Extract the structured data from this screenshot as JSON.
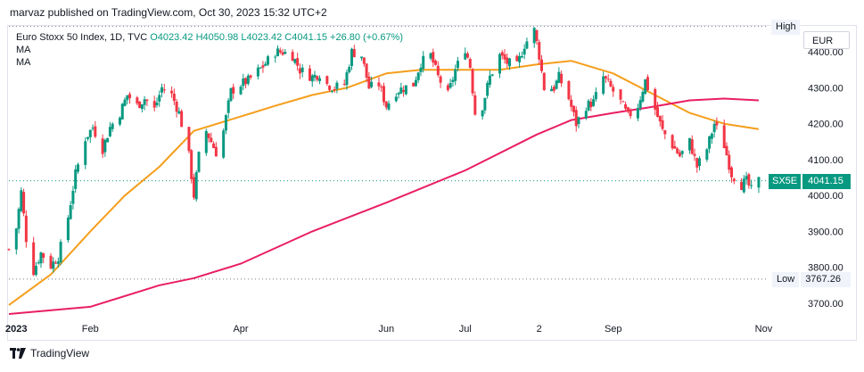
{
  "attribution": "marvaz published on TradingView.com, Oct 30, 2023 15:32 UTC+2",
  "legend": {
    "symbol": "Euro Stoxx 50 Index, 1D, TVC",
    "ohlc": "O4023.42 H4050.98 L4023.42 C4041.15 +26.80 (+0.67%)",
    "ma1": "MA",
    "ma2": "MA"
  },
  "currency": "EUR",
  "tags": {
    "high_label": "High",
    "low_label": "Low",
    "low_value": "3767.26",
    "symbol_code": "SX5E",
    "last_value": "4041.15"
  },
  "footer": "TradingView",
  "colors": {
    "up": "#089981",
    "down": "#f23645",
    "ma_short": "#f59e1b",
    "ma_long": "#e91e63",
    "last_tag": "#089981"
  },
  "chart_data": {
    "type": "candlestick",
    "y_ticks": [
      3700,
      3800,
      3900,
      4000,
      4100,
      4200,
      4300,
      4400
    ],
    "y_tick_labels": [
      "3700.00",
      "3800.00",
      "3900.00",
      "4000.00",
      "4100.00",
      "4200.00",
      "4300.00",
      "4400.00"
    ],
    "ylim": [
      3670,
      4470
    ],
    "x_labels": [
      {
        "label": "2023",
        "x": "2023-01-02"
      },
      {
        "label": "Feb",
        "x": "2023-02-01"
      },
      {
        "label": "Apr",
        "x": "2023-04-03"
      },
      {
        "label": "Jun",
        "x": "2023-06-01"
      },
      {
        "label": "Jul",
        "x": "2023-07-03"
      },
      {
        "label": "2",
        "x": "2023-08-02"
      },
      {
        "label": "Sep",
        "x": "2023-09-01"
      },
      {
        "label": "Nov",
        "x": "2023-11-01"
      }
    ],
    "xlim": [
      "2022-12-30",
      "2023-11-03"
    ],
    "high_value": 4471,
    "low_value": 3767.26,
    "last_value": 4041.15,
    "close_anchors": [
      [
        "2022-12-30",
        3850
      ],
      [
        "2023-01-02",
        3910
      ],
      [
        "2023-01-04",
        4010
      ],
      [
        "2023-01-06",
        3880
      ],
      [
        "2023-01-09",
        3790
      ],
      [
        "2023-01-12",
        3840
      ],
      [
        "2023-01-16",
        3805
      ],
      [
        "2023-01-19",
        3830
      ],
      [
        "2023-01-23",
        3940
      ],
      [
        "2023-01-26",
        4060
      ],
      [
        "2023-01-30",
        4160
      ],
      [
        "2023-02-02",
        4190
      ],
      [
        "2023-02-06",
        4130
      ],
      [
        "2023-02-09",
        4190
      ],
      [
        "2023-02-13",
        4230
      ],
      [
        "2023-02-16",
        4280
      ],
      [
        "2023-02-20",
        4250
      ],
      [
        "2023-02-23",
        4270
      ],
      [
        "2023-02-27",
        4240
      ],
      [
        "2023-03-02",
        4300
      ],
      [
        "2023-03-06",
        4280
      ],
      [
        "2023-03-09",
        4230
      ],
      [
        "2023-03-13",
        4110
      ],
      [
        "2023-03-15",
        4000
      ],
      [
        "2023-03-17",
        4110
      ],
      [
        "2023-03-20",
        4180
      ],
      [
        "2023-03-22",
        4150
      ],
      [
        "2023-03-24",
        4120
      ],
      [
        "2023-03-27",
        4180
      ],
      [
        "2023-03-30",
        4290
      ],
      [
        "2023-04-03",
        4310
      ],
      [
        "2023-04-06",
        4320
      ],
      [
        "2023-04-12",
        4360
      ],
      [
        "2023-04-17",
        4400
      ],
      [
        "2023-04-20",
        4400
      ],
      [
        "2023-04-24",
        4390
      ],
      [
        "2023-04-27",
        4350
      ],
      [
        "2023-05-02",
        4330
      ],
      [
        "2023-05-05",
        4340
      ],
      [
        "2023-05-08",
        4310
      ],
      [
        "2023-05-11",
        4300
      ],
      [
        "2023-05-15",
        4310
      ],
      [
        "2023-05-18",
        4400
      ],
      [
        "2023-05-22",
        4390
      ],
      [
        "2023-05-25",
        4300
      ],
      [
        "2023-05-29",
        4310
      ],
      [
        "2023-06-01",
        4250
      ],
      [
        "2023-06-05",
        4290
      ],
      [
        "2023-06-08",
        4300
      ],
      [
        "2023-06-12",
        4310
      ],
      [
        "2023-06-15",
        4370
      ],
      [
        "2023-06-19",
        4390
      ],
      [
        "2023-06-22",
        4330
      ],
      [
        "2023-06-26",
        4280
      ],
      [
        "2023-06-29",
        4350
      ],
      [
        "2023-07-03",
        4410
      ],
      [
        "2023-07-05",
        4360
      ],
      [
        "2023-07-07",
        4230
      ],
      [
        "2023-07-10",
        4250
      ],
      [
        "2023-07-13",
        4330
      ],
      [
        "2023-07-17",
        4390
      ],
      [
        "2023-07-20",
        4370
      ],
      [
        "2023-07-24",
        4360
      ],
      [
        "2023-07-27",
        4420
      ],
      [
        "2023-07-31",
        4460
      ],
      [
        "2023-08-02",
        4390
      ],
      [
        "2023-08-04",
        4300
      ],
      [
        "2023-08-08",
        4300
      ],
      [
        "2023-08-10",
        4330
      ],
      [
        "2023-08-14",
        4270
      ],
      [
        "2023-08-17",
        4200
      ],
      [
        "2023-08-21",
        4250
      ],
      [
        "2023-08-24",
        4260
      ],
      [
        "2023-08-28",
        4330
      ],
      [
        "2023-08-31",
        4300
      ],
      [
        "2023-09-04",
        4260
      ],
      [
        "2023-09-07",
        4220
      ],
      [
        "2023-09-11",
        4250
      ],
      [
        "2023-09-14",
        4320
      ],
      [
        "2023-09-18",
        4240
      ],
      [
        "2023-09-21",
        4180
      ],
      [
        "2023-09-25",
        4140
      ],
      [
        "2023-09-28",
        4110
      ],
      [
        "2023-10-02",
        4150
      ],
      [
        "2023-10-05",
        4080
      ],
      [
        "2023-10-09",
        4130
      ],
      [
        "2023-10-12",
        4200
      ],
      [
        "2023-10-16",
        4140
      ],
      [
        "2023-10-19",
        4060
      ],
      [
        "2023-10-23",
        4030
      ],
      [
        "2023-10-25",
        4040
      ],
      [
        "2023-10-27",
        4014
      ],
      [
        "2023-10-30",
        4041.15
      ]
    ],
    "series": [
      {
        "name": "MA",
        "values": [
          [
            "2022-12-30",
            3695
          ],
          [
            "2023-01-16",
            3780
          ],
          [
            "2023-02-01",
            3900
          ],
          [
            "2023-02-15",
            4000
          ],
          [
            "2023-03-01",
            4080
          ],
          [
            "2023-03-15",
            4180
          ],
          [
            "2023-04-03",
            4220
          ],
          [
            "2023-04-17",
            4250
          ],
          [
            "2023-05-02",
            4280
          ],
          [
            "2023-05-16",
            4300
          ],
          [
            "2023-06-01",
            4340
          ],
          [
            "2023-06-15",
            4350
          ],
          [
            "2023-07-03",
            4350
          ],
          [
            "2023-07-17",
            4350
          ],
          [
            "2023-08-01",
            4365
          ],
          [
            "2023-08-15",
            4375
          ],
          [
            "2023-09-01",
            4340
          ],
          [
            "2023-09-15",
            4290
          ],
          [
            "2023-10-02",
            4230
          ],
          [
            "2023-10-16",
            4200
          ],
          [
            "2023-10-30",
            4185
          ]
        ]
      },
      {
        "name": "MA",
        "values": [
          [
            "2022-12-30",
            3670
          ],
          [
            "2023-02-01",
            3690
          ],
          [
            "2023-03-01",
            3750
          ],
          [
            "2023-03-15",
            3770
          ],
          [
            "2023-04-03",
            3810
          ],
          [
            "2023-05-02",
            3900
          ],
          [
            "2023-06-01",
            3980
          ],
          [
            "2023-07-03",
            4070
          ],
          [
            "2023-08-01",
            4170
          ],
          [
            "2023-08-15",
            4210
          ],
          [
            "2023-09-01",
            4230
          ],
          [
            "2023-09-15",
            4245
          ],
          [
            "2023-10-02",
            4265
          ],
          [
            "2023-10-16",
            4270
          ],
          [
            "2023-10-30",
            4265
          ]
        ]
      }
    ]
  }
}
